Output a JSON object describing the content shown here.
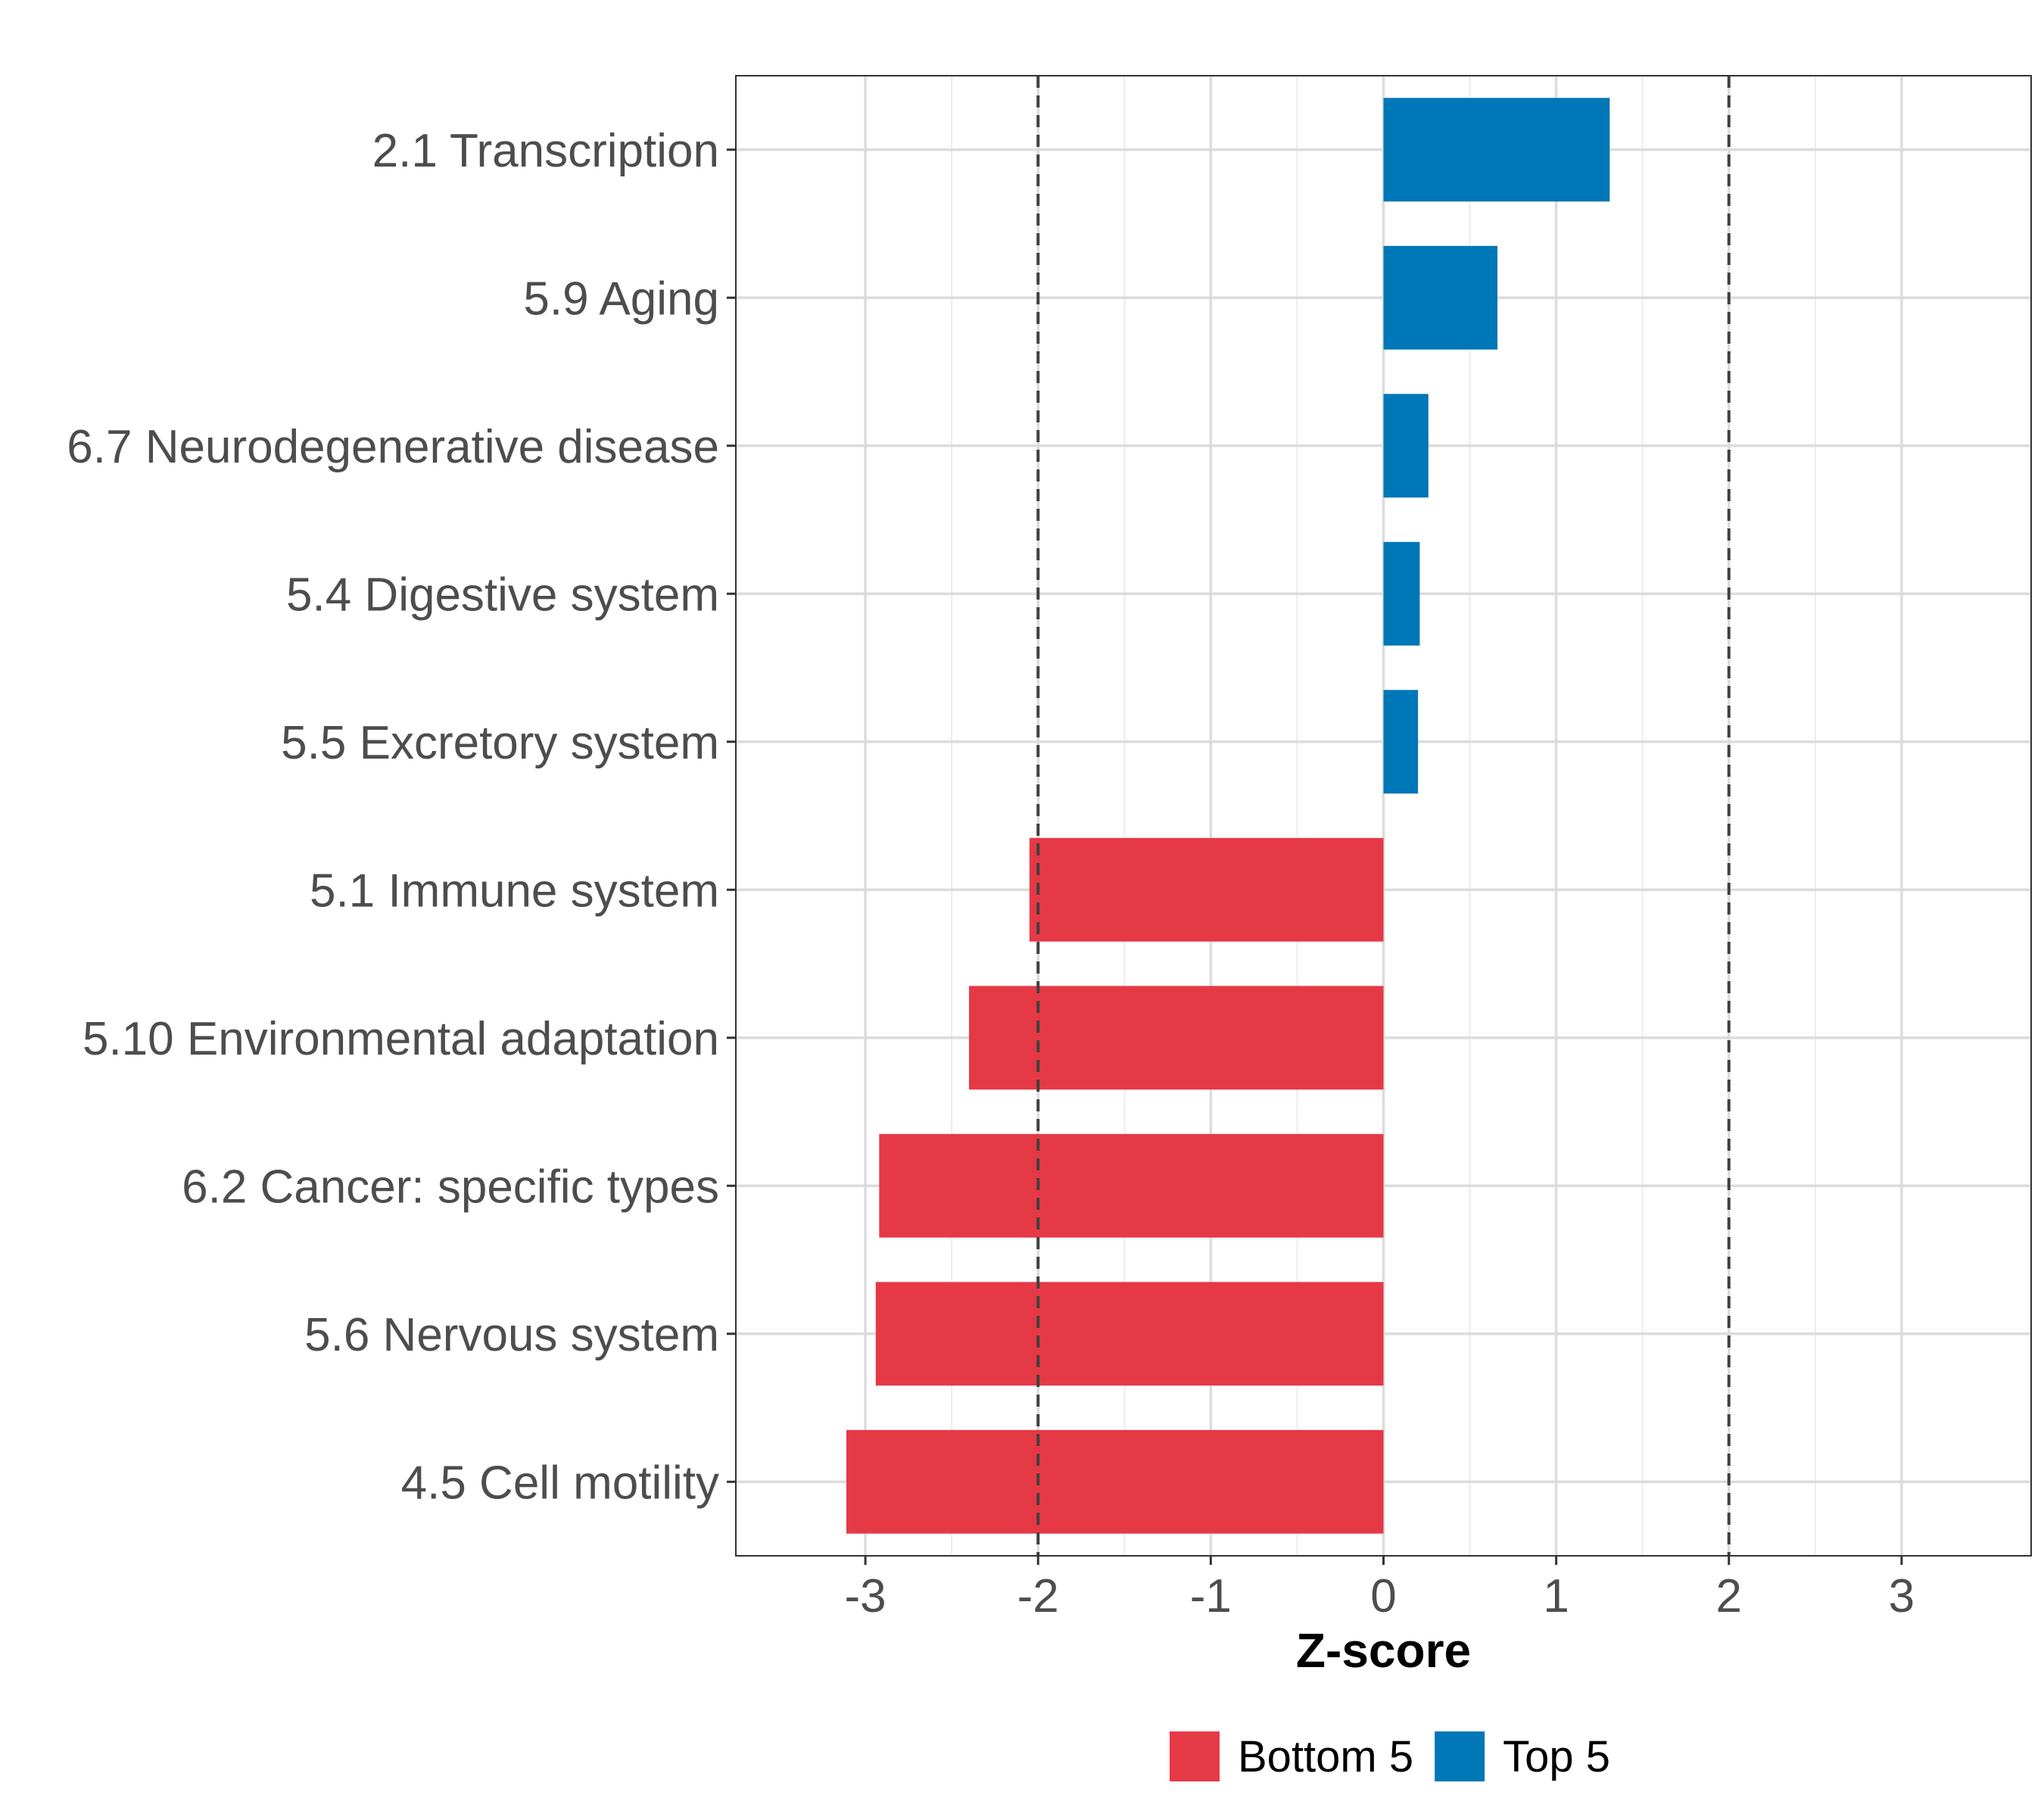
{
  "chart_data": {
    "type": "bar",
    "orientation": "horizontal",
    "title": "",
    "xlabel": "Z-score",
    "ylabel": "",
    "xlim": [
      -3.75,
      3.75
    ],
    "x_ticks": [
      -3,
      -2,
      -1,
      0,
      1,
      2,
      3
    ],
    "x_tick_labels": [
      "-3",
      "-2",
      "-1",
      "0",
      "1",
      "2",
      "3"
    ],
    "reference_lines": [
      -2,
      2
    ],
    "grid": true,
    "legend_position": "bottom",
    "categories": [
      "2.1 Transcription",
      "5.9 Aging",
      "6.7 Neurodegenerative disease",
      "5.4 Digestive system",
      "5.5 Excretory system",
      "5.1 Immune system",
      "5.10 Environmental adaptation",
      "6.2 Cancer: specific types",
      "5.6 Nervous system",
      "4.5 Cell motility"
    ],
    "values": [
      1.31,
      0.66,
      0.26,
      0.21,
      0.2,
      -2.05,
      -2.4,
      -2.92,
      -2.94,
      -3.11
    ],
    "groups": [
      "Top 5",
      "Top 5",
      "Top 5",
      "Top 5",
      "Top 5",
      "Bottom 5",
      "Bottom 5",
      "Bottom 5",
      "Bottom 5",
      "Bottom 5"
    ],
    "legend": [
      {
        "name": "Bottom 5",
        "color": "#e63946"
      },
      {
        "name": "Top 5",
        "color": "#0077b6"
      }
    ]
  }
}
